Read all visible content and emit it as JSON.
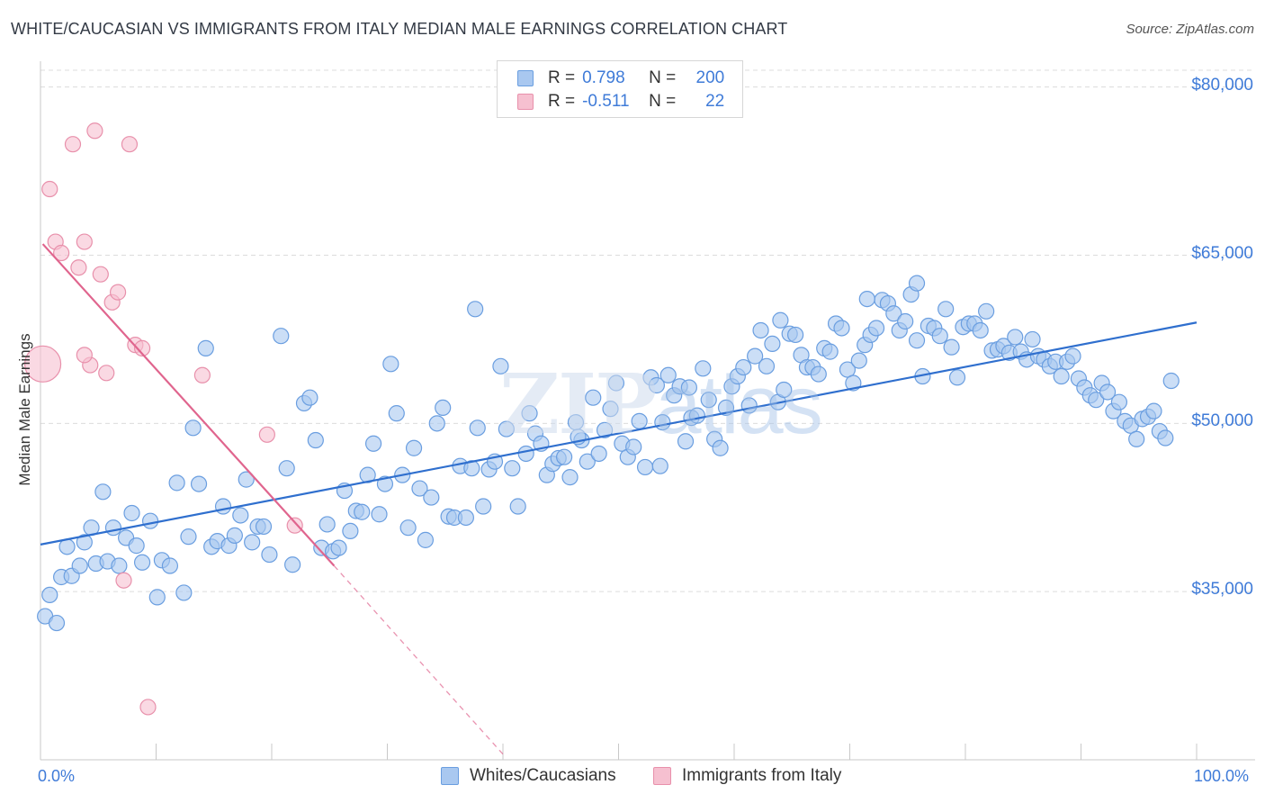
{
  "title": "WHITE/CAUCASIAN VS IMMIGRANTS FROM ITALY MEDIAN MALE EARNINGS CORRELATION CHART",
  "source": "Source: ZipAtlas.com",
  "watermark": {
    "zip": "ZIP",
    "atlas": "atlas"
  },
  "legend": {
    "rows": [
      {
        "r_label": "R =",
        "r_value": "0.798",
        "n_label": "N =",
        "n_value": "200"
      },
      {
        "r_label": "R =",
        "r_value": "-0.511",
        "n_label": "N =",
        "n_value": "22"
      }
    ]
  },
  "bottom_legend": [
    "Whites/Caucasians",
    "Immigrants from Italy"
  ],
  "colors": {
    "blue_fill": "#a9c8f0",
    "blue_stroke": "#6a9ee0",
    "blue_line": "#2f6fce",
    "pink_fill": "#f6c0d0",
    "pink_stroke": "#e890ab",
    "pink_line": "#e0658e",
    "tick_text": "#3f7bd8",
    "grid": "#dcdcdc"
  },
  "chart_data": {
    "type": "scatter",
    "title": "WHITE/CAUCASIAN VS IMMIGRANTS FROM ITALY MEDIAN MALE EARNINGS CORRELATION CHART",
    "xlabel": "",
    "ylabel": "Median Male Earnings",
    "xlim": [
      0,
      100
    ],
    "ylim": [
      20000,
      81500
    ],
    "x_tick_labels": [
      "0.0%",
      "100.0%"
    ],
    "y_ticks": [
      35000,
      50000,
      65000,
      80000
    ],
    "y_tick_labels": [
      "$35,000",
      "$50,000",
      "$65,000",
      "$80,000"
    ],
    "grid": true,
    "series": [
      {
        "name": "Whites/Caucasians",
        "r": 0.798,
        "n": 200,
        "trend": [
          [
            0,
            39200
          ],
          [
            100,
            59000
          ]
        ],
        "points": [
          [
            0.4,
            32800
          ],
          [
            0.8,
            34700
          ],
          [
            1.4,
            32200
          ],
          [
            1.8,
            36300
          ],
          [
            2.3,
            39000
          ],
          [
            2.7,
            36400
          ],
          [
            3.4,
            37300
          ],
          [
            3.8,
            39400
          ],
          [
            4.4,
            40700
          ],
          [
            4.8,
            37500
          ],
          [
            5.4,
            43900
          ],
          [
            5.8,
            37700
          ],
          [
            6.3,
            40700
          ],
          [
            6.8,
            37300
          ],
          [
            7.4,
            39800
          ],
          [
            7.9,
            42000
          ],
          [
            8.3,
            39100
          ],
          [
            8.8,
            37600
          ],
          [
            9.5,
            41300
          ],
          [
            10.1,
            34500
          ],
          [
            10.5,
            37800
          ],
          [
            11.2,
            37300
          ],
          [
            11.8,
            44700
          ],
          [
            12.4,
            34900
          ],
          [
            12.8,
            39900
          ],
          [
            13.2,
            49600
          ],
          [
            13.7,
            44600
          ],
          [
            14.3,
            56700
          ],
          [
            14.8,
            39000
          ],
          [
            15.3,
            39500
          ],
          [
            15.8,
            42600
          ],
          [
            16.3,
            39100
          ],
          [
            16.8,
            40000
          ],
          [
            17.3,
            41800
          ],
          [
            17.8,
            45000
          ],
          [
            18.3,
            39400
          ],
          [
            18.8,
            40800
          ],
          [
            19.3,
            40800
          ],
          [
            19.8,
            38300
          ],
          [
            20.8,
            57800
          ],
          [
            21.3,
            46000
          ],
          [
            21.8,
            37400
          ],
          [
            22.8,
            51800
          ],
          [
            23.3,
            52300
          ],
          [
            23.8,
            48500
          ],
          [
            24.3,
            38900
          ],
          [
            24.8,
            41000
          ],
          [
            25.3,
            38600
          ],
          [
            25.8,
            38900
          ],
          [
            26.3,
            44000
          ],
          [
            26.8,
            40400
          ],
          [
            27.3,
            42200
          ],
          [
            27.8,
            42100
          ],
          [
            28.3,
            45400
          ],
          [
            28.8,
            48200
          ],
          [
            29.3,
            41900
          ],
          [
            29.8,
            44600
          ],
          [
            30.3,
            55300
          ],
          [
            30.8,
            50900
          ],
          [
            31.3,
            45400
          ],
          [
            31.8,
            40700
          ],
          [
            32.3,
            47800
          ],
          [
            32.8,
            44200
          ],
          [
            33.3,
            39600
          ],
          [
            33.8,
            43400
          ],
          [
            34.3,
            50000
          ],
          [
            34.8,
            51400
          ],
          [
            35.3,
            41700
          ],
          [
            35.8,
            41600
          ],
          [
            36.3,
            46200
          ],
          [
            36.8,
            41600
          ],
          [
            37.3,
            46000
          ],
          [
            37.8,
            49600
          ],
          [
            38.3,
            42600
          ],
          [
            38.8,
            45900
          ],
          [
            39.3,
            46600
          ],
          [
            39.8,
            55100
          ],
          [
            40.3,
            49500
          ],
          [
            40.8,
            46000
          ],
          [
            41.3,
            42600
          ],
          [
            42.3,
            50900
          ],
          [
            42.8,
            49100
          ],
          [
            43.3,
            48200
          ],
          [
            43.8,
            45400
          ],
          [
            44.3,
            46400
          ],
          [
            44.8,
            46900
          ],
          [
            45.3,
            47000
          ],
          [
            45.8,
            45200
          ],
          [
            46.3,
            50100
          ],
          [
            46.8,
            48500
          ],
          [
            47.3,
            46600
          ],
          [
            47.8,
            52300
          ],
          [
            48.3,
            47300
          ],
          [
            48.8,
            49400
          ],
          [
            49.3,
            51300
          ],
          [
            49.8,
            53600
          ],
          [
            50.3,
            48200
          ],
          [
            50.8,
            47000
          ],
          [
            51.3,
            47900
          ],
          [
            51.8,
            50200
          ],
          [
            52.3,
            46100
          ],
          [
            52.8,
            54100
          ],
          [
            53.3,
            53400
          ],
          [
            53.8,
            50100
          ],
          [
            54.3,
            54300
          ],
          [
            54.8,
            52500
          ],
          [
            55.3,
            53300
          ],
          [
            55.8,
            48400
          ],
          [
            56.3,
            50500
          ],
          [
            56.8,
            50700
          ],
          [
            57.3,
            54900
          ],
          [
            57.8,
            52100
          ],
          [
            58.3,
            48600
          ],
          [
            58.8,
            47800
          ],
          [
            59.3,
            51400
          ],
          [
            59.8,
            53300
          ],
          [
            60.3,
            54200
          ],
          [
            60.8,
            55000
          ],
          [
            61.3,
            51600
          ],
          [
            61.8,
            56000
          ],
          [
            62.3,
            58300
          ],
          [
            62.8,
            55100
          ],
          [
            63.3,
            57100
          ],
          [
            63.8,
            51900
          ],
          [
            64.3,
            53000
          ],
          [
            64.8,
            58000
          ],
          [
            65.3,
            57900
          ],
          [
            65.8,
            56100
          ],
          [
            66.3,
            55000
          ],
          [
            66.8,
            55000
          ],
          [
            67.3,
            54400
          ],
          [
            67.8,
            56700
          ],
          [
            68.3,
            56400
          ],
          [
            68.8,
            58900
          ],
          [
            69.3,
            58500
          ],
          [
            69.8,
            54800
          ],
          [
            70.3,
            53600
          ],
          [
            70.8,
            55600
          ],
          [
            71.3,
            57000
          ],
          [
            71.8,
            57900
          ],
          [
            72.3,
            58500
          ],
          [
            72.8,
            61000
          ],
          [
            73.3,
            60700
          ],
          [
            73.8,
            59800
          ],
          [
            74.3,
            58300
          ],
          [
            74.8,
            59100
          ],
          [
            75.3,
            61500
          ],
          [
            75.8,
            57400
          ],
          [
            76.3,
            54200
          ],
          [
            76.8,
            58700
          ],
          [
            77.3,
            58500
          ],
          [
            77.8,
            57800
          ],
          [
            78.3,
            60200
          ],
          [
            78.8,
            56800
          ],
          [
            79.3,
            54100
          ],
          [
            79.8,
            58600
          ],
          [
            80.3,
            58900
          ],
          [
            80.8,
            58900
          ],
          [
            81.3,
            58300
          ],
          [
            81.8,
            60000
          ],
          [
            82.3,
            56500
          ],
          [
            82.8,
            56600
          ],
          [
            83.3,
            56900
          ],
          [
            83.8,
            56300
          ],
          [
            84.3,
            57700
          ],
          [
            84.8,
            56400
          ],
          [
            85.3,
            55700
          ],
          [
            85.8,
            57500
          ],
          [
            86.3,
            56000
          ],
          [
            86.8,
            55700
          ],
          [
            87.3,
            55100
          ],
          [
            87.8,
            55500
          ],
          [
            88.3,
            54200
          ],
          [
            88.8,
            55500
          ],
          [
            89.3,
            56000
          ],
          [
            89.8,
            54000
          ],
          [
            90.3,
            53200
          ],
          [
            90.8,
            52500
          ],
          [
            91.3,
            52100
          ],
          [
            91.8,
            53600
          ],
          [
            92.3,
            52800
          ],
          [
            92.8,
            51100
          ],
          [
            93.3,
            51900
          ],
          [
            93.8,
            50200
          ],
          [
            94.3,
            49800
          ],
          [
            94.8,
            48600
          ],
          [
            95.3,
            50400
          ],
          [
            95.8,
            50600
          ],
          [
            96.3,
            51100
          ],
          [
            96.8,
            49300
          ],
          [
            97.3,
            48700
          ],
          [
            97.8,
            53800
          ],
          [
            75.8,
            62500
          ],
          [
            71.5,
            61100
          ],
          [
            64.0,
            59200
          ],
          [
            46.5,
            48800
          ],
          [
            42.0,
            47300
          ],
          [
            53.6,
            46200
          ],
          [
            37.6,
            60200
          ],
          [
            56.1,
            53200
          ]
        ]
      },
      {
        "name": "Immigrants from Italy",
        "r": -0.511,
        "n": 22,
        "trend": [
          [
            0.2,
            66000
          ],
          [
            25.4,
            37300
          ]
        ],
        "trend_dashed": [
          [
            25.4,
            37300
          ],
          [
            40.0,
            20500
          ]
        ],
        "points": [
          [
            0.2,
            55300
          ],
          [
            0.8,
            70900
          ],
          [
            1.3,
            66200
          ],
          [
            1.8,
            65200
          ],
          [
            2.8,
            74900
          ],
          [
            3.3,
            63900
          ],
          [
            3.8,
            66200
          ],
          [
            4.3,
            55200
          ],
          [
            4.7,
            76100
          ],
          [
            5.2,
            63300
          ],
          [
            5.7,
            54500
          ],
          [
            6.2,
            60800
          ],
          [
            6.7,
            61700
          ],
          [
            7.2,
            36000
          ],
          [
            7.7,
            74900
          ],
          [
            8.2,
            57000
          ],
          [
            8.8,
            56700
          ],
          [
            9.3,
            24700
          ],
          [
            14.0,
            54300
          ],
          [
            19.6,
            49000
          ],
          [
            22.0,
            40900
          ],
          [
            3.8,
            56100
          ]
        ]
      }
    ]
  }
}
